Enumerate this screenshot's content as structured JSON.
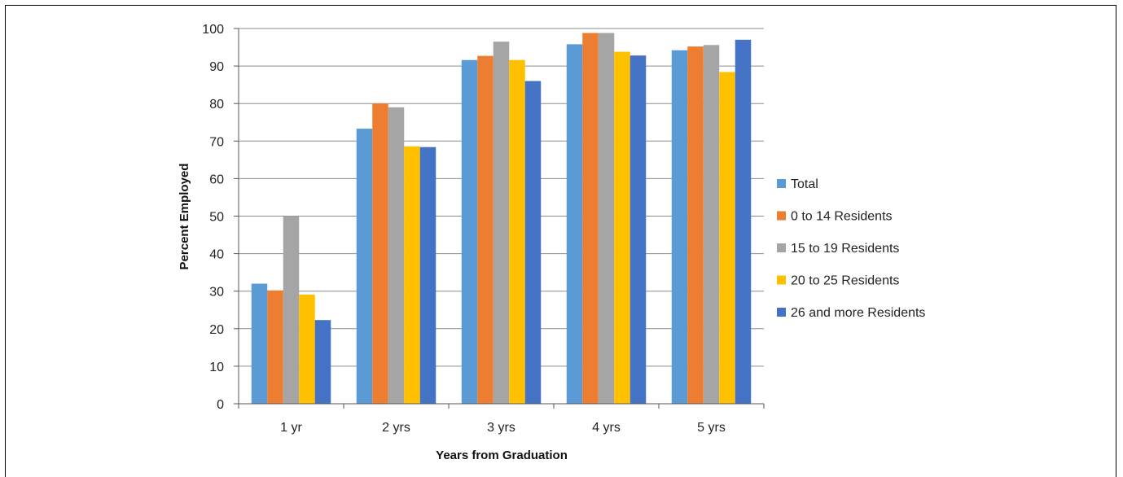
{
  "chart_data": {
    "type": "bar",
    "title": "",
    "xlabel": "Years from Graduation",
    "ylabel": "Percent Employed",
    "categories": [
      "1 yr",
      "2 yrs",
      "3 yrs",
      "4 yrs",
      "5 yrs"
    ],
    "ylim": [
      0,
      100
    ],
    "yticks": [
      0,
      10,
      20,
      30,
      40,
      50,
      60,
      70,
      80,
      90,
      100
    ],
    "grid": true,
    "legend_position": "right",
    "series": [
      {
        "name": "Total",
        "color": "#5B9BD5",
        "values": [
          32,
          73.3,
          91.6,
          95.8,
          94.2
        ]
      },
      {
        "name": "0 to 14 Residents",
        "color": "#ED7D31",
        "values": [
          30.2,
          80,
          92.7,
          98.8,
          95.2
        ]
      },
      {
        "name": "15 to 19 Residents",
        "color": "#A5A5A5",
        "values": [
          50,
          79,
          96.5,
          98.8,
          95.6
        ]
      },
      {
        "name": "20 to 25 Residents",
        "color": "#FFC000",
        "values": [
          29.1,
          68.6,
          91.6,
          93.8,
          88.4
        ]
      },
      {
        "name": "26 and more Residents",
        "color": "#4472C4",
        "values": [
          22.3,
          68.4,
          86,
          92.8,
          97
        ]
      }
    ]
  }
}
